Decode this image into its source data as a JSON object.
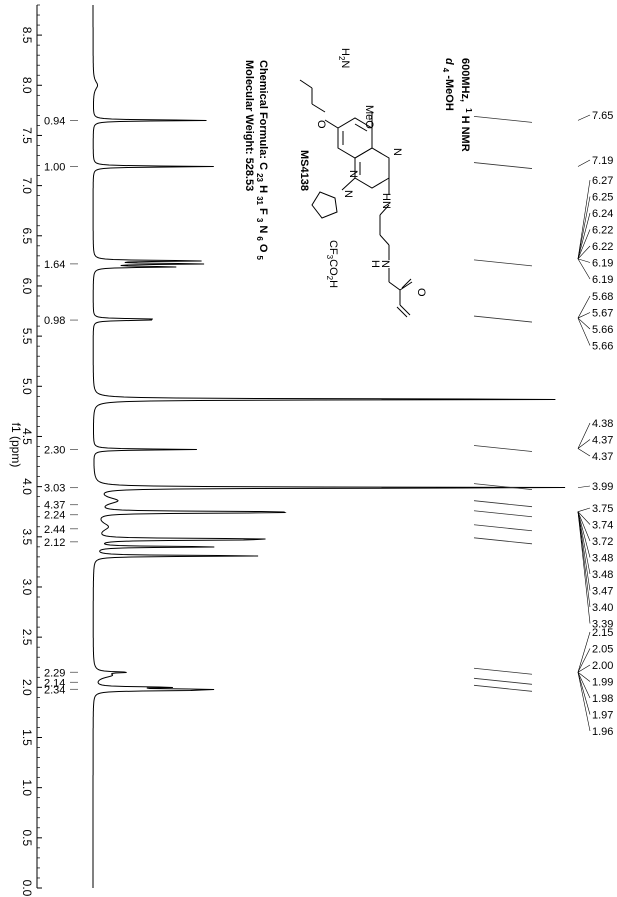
{
  "chart_data": {
    "type": "line",
    "axis_label": "f1 (ppm)",
    "xlim": [
      8.8,
      0.0
    ],
    "ticks": [
      "8.5",
      "8.0",
      "7.5",
      "7.0",
      "6.5",
      "6.0",
      "5.5",
      "5.0",
      "4.5",
      "4.0",
      "3.5",
      "3.0",
      "2.5",
      "2.0",
      "1.5",
      "1.0",
      "0.5",
      "0.0"
    ],
    "tick_values": [
      8.5,
      8.0,
      7.5,
      7.0,
      6.5,
      6.0,
      5.5,
      5.0,
      4.5,
      4.0,
      3.5,
      3.0,
      2.5,
      2.0,
      1.5,
      1.0,
      0.5,
      0.0
    ],
    "baseline": 0,
    "peaks": [
      {
        "ppm": 7.65,
        "height": 0.26
      },
      {
        "ppm": 7.19,
        "height": 0.27
      },
      {
        "ppm": 6.25,
        "height": 0.24
      },
      {
        "ppm": 6.22,
        "height": 0.24
      },
      {
        "ppm": 6.19,
        "height": 0.18
      },
      {
        "ppm": 5.67,
        "height": 0.11
      },
      {
        "ppm": 5.66,
        "height": 0.1
      },
      {
        "ppm": 4.87,
        "height": 1.1
      },
      {
        "ppm": 4.37,
        "height": 0.23
      },
      {
        "ppm": 3.99,
        "height": 1.1
      },
      {
        "ppm": 3.75,
        "height": 0.34
      },
      {
        "ppm": 3.74,
        "height": 0.33
      },
      {
        "ppm": 3.48,
        "height": 0.3
      },
      {
        "ppm": 3.47,
        "height": 0.29
      },
      {
        "ppm": 3.4,
        "height": 0.28
      },
      {
        "ppm": 3.31,
        "height": 0.38
      },
      {
        "ppm": 2.15,
        "height": 0.06
      },
      {
        "ppm": 2.0,
        "height": 0.16
      },
      {
        "ppm": 1.98,
        "height": 0.21
      },
      {
        "ppm": 1.97,
        "height": 0.18
      }
    ],
    "integrals": [
      {
        "label": "0.94",
        "ppm": 7.65
      },
      {
        "label": "1.00",
        "ppm": 7.19
      },
      {
        "label": "1.64",
        "ppm": 6.22
      },
      {
        "label": "0.98",
        "ppm": 5.66
      },
      {
        "label": "2.30",
        "ppm": 4.37
      },
      {
        "label": "3.03",
        "ppm": 3.99
      },
      {
        "label": "4.37",
        "ppm": 3.82
      },
      {
        "label": "2.24",
        "ppm": 3.72
      },
      {
        "label": "2.44",
        "ppm": 3.58
      },
      {
        "label": "2.12",
        "ppm": 3.45
      },
      {
        "label": "2.29",
        "ppm": 2.15
      },
      {
        "label": "2.14",
        "ppm": 2.05
      },
      {
        "label": "2.34",
        "ppm": 1.98
      }
    ],
    "peak_groups": [
      {
        "labels": [
          "7.65"
        ]
      },
      {
        "labels": [
          "7.19"
        ]
      },
      {
        "labels": [
          "6.27",
          "6.25",
          "6.24",
          "6.22",
          "6.22",
          "6.19",
          "6.19"
        ]
      },
      {
        "labels": [
          "5.68",
          "5.67",
          "5.66",
          "5.66"
        ]
      },
      {
        "labels": [
          "4.38",
          "4.37",
          "4.37"
        ]
      },
      {
        "labels": [
          "3.99"
        ]
      },
      {
        "labels": [
          "3.75",
          "3.74",
          "3.72",
          "3.48",
          "3.48",
          "3.47",
          "3.40",
          "3.39"
        ]
      },
      {
        "labels": [
          "2.15",
          "2.05",
          "2.00",
          "1.99",
          "1.98",
          "1.97",
          "1.96"
        ]
      }
    ],
    "annotations": {
      "spectrometer": "600MHz,",
      "nucleus_sup": "1",
      "nucleus": "H NMR",
      "solvent_prefix": "d",
      "solvent_sub": "4",
      "solvent_rest": "-MeOH",
      "compound": "MS4138",
      "formula_prefix": "Chemical Formula: C",
      "formula_c": "23",
      "formula_h": "31",
      "formula_f": "3",
      "formula_n": "6",
      "formula_o": "5",
      "mw": "Molecular Weight: 528.53",
      "structure": {
        "meo": "MeO",
        "h2n": "H",
        "h2n_sub": "2",
        "h2n_n": "N",
        "o1": "O",
        "hn1": "HN",
        "n_a": "N",
        "n_b": "N",
        "n_ring": "N",
        "nh_amide_n": "N",
        "nh_amide_h": "H",
        "amide_o": "O",
        "tfa": "CF",
        "tfa_sub": "3",
        "tfa_rest": "CO",
        "tfa_sub2": "2",
        "tfa_h": "H"
      }
    }
  }
}
